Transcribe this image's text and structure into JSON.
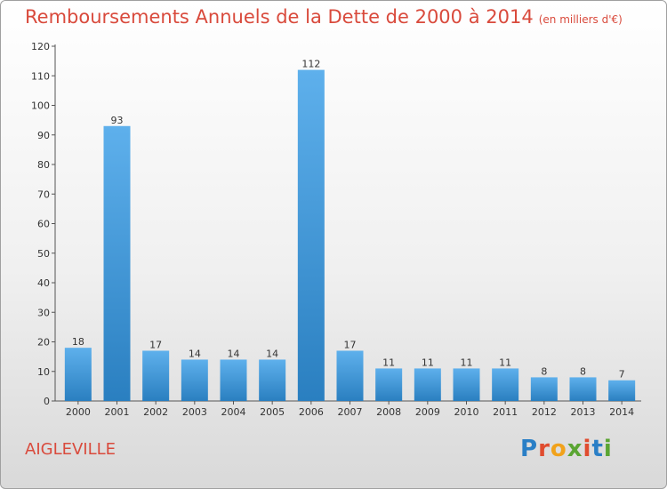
{
  "title": "Remboursements Annuels de la Dette de 2000 à 2014",
  "subtitle": "(en milliers d'€)",
  "town": "AIGLEVILLE",
  "logo": {
    "text": "Proxiti",
    "letters": [
      "P",
      "r",
      "o",
      "x",
      "i",
      "t",
      "i"
    ],
    "colors": [
      "#2a7fc6",
      "#e04c2f",
      "#f1a21b",
      "#5aa532",
      "#e04c2f",
      "#2a7fc6",
      "#5aa532"
    ]
  },
  "colors": {
    "bar": "#3b95db",
    "title": "#d94a3c"
  },
  "chart_data": {
    "type": "bar",
    "title": "Remboursements Annuels de la Dette de 2000 à 2014",
    "subtitle": "(en milliers d'€)",
    "xlabel": "",
    "ylabel": "",
    "categories": [
      "2000",
      "2001",
      "2002",
      "2003",
      "2004",
      "2005",
      "2006",
      "2007",
      "2008",
      "2009",
      "2010",
      "2011",
      "2012",
      "2013",
      "2014"
    ],
    "values": [
      18,
      93,
      17,
      14,
      14,
      14,
      112,
      17,
      11,
      11,
      11,
      11,
      8,
      8,
      7
    ],
    "ylim": [
      0,
      120
    ],
    "yticks": [
      0,
      10,
      20,
      30,
      40,
      50,
      60,
      70,
      80,
      90,
      100,
      110,
      120
    ],
    "grid": false
  }
}
